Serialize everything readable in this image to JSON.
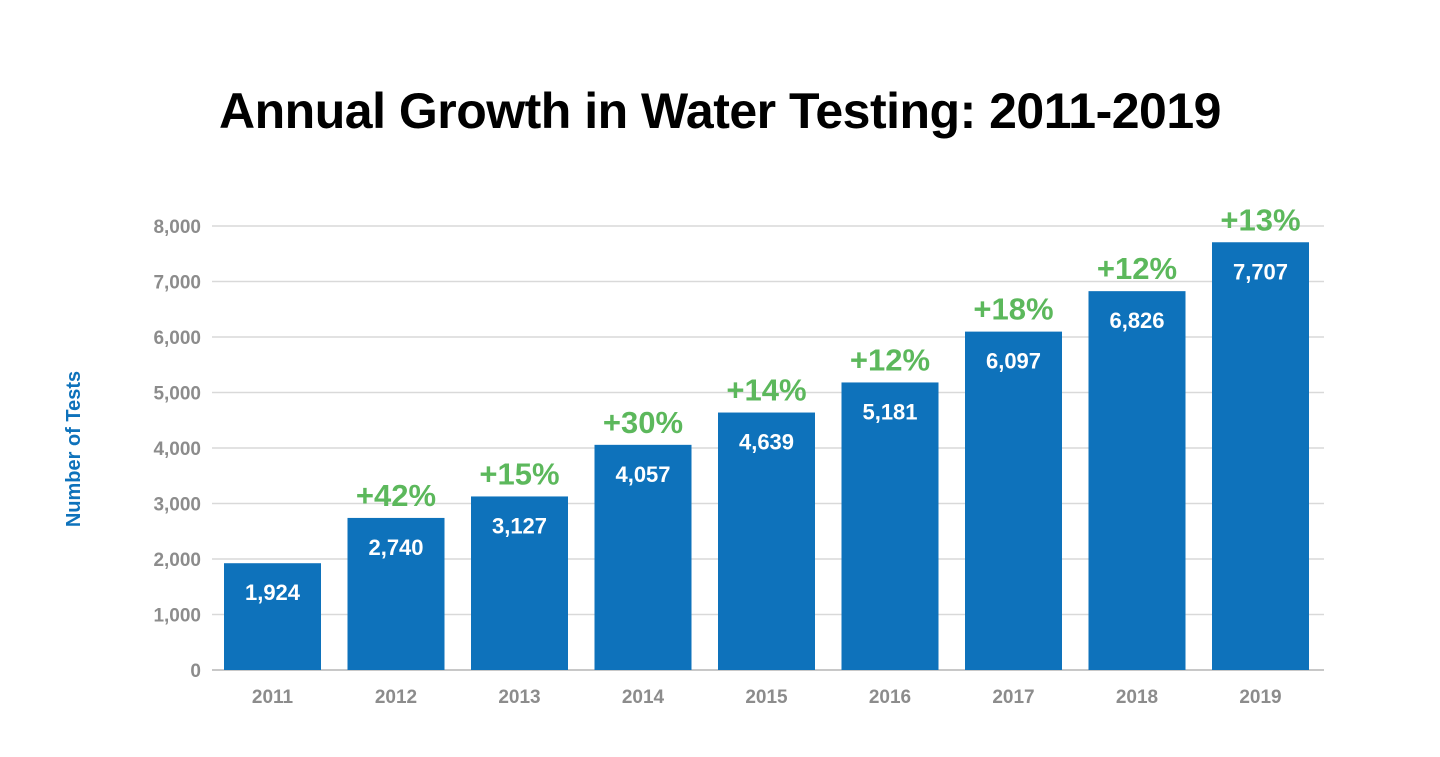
{
  "chart_data": {
    "type": "bar",
    "title": "Annual Growth in Water Testing: 2011-2019",
    "xlabel": "",
    "ylabel": "Number of Tests",
    "categories": [
      "2011",
      "2012",
      "2013",
      "2014",
      "2015",
      "2016",
      "2017",
      "2018",
      "2019"
    ],
    "values": [
      1924,
      2740,
      3127,
      4057,
      4639,
      5181,
      6097,
      6826,
      7707
    ],
    "value_labels": [
      "1,924",
      "2,740",
      "3,127",
      "4,057",
      "4,639",
      "5,181",
      "6,097",
      "6,826",
      "7,707"
    ],
    "annotations": [
      "",
      "+42%",
      "+15%",
      "+30%",
      "+14%",
      "+12%",
      "+18%",
      "+12%",
      "+13%"
    ],
    "ylim": [
      0,
      8000
    ],
    "yticks": [
      0,
      1000,
      2000,
      3000,
      4000,
      5000,
      6000,
      7000,
      8000
    ],
    "ytick_labels": [
      "0",
      "1,000",
      "2,000",
      "3,000",
      "4,000",
      "5,000",
      "6,000",
      "7,000",
      "8,000"
    ],
    "grid": true,
    "legend": "none"
  },
  "colors": {
    "bar": "#0e72bb",
    "growth": "#5cb85c",
    "ylabel": "#0e72bb",
    "tick": "#8c8c8c",
    "grid": "#d9d9d9",
    "axis": "#c8c8c8",
    "title": "#000000"
  }
}
